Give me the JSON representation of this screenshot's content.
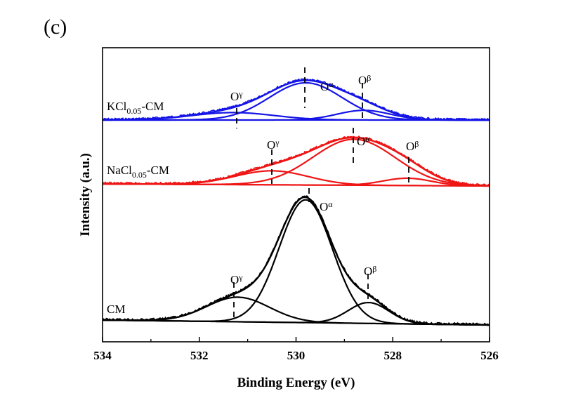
{
  "panel_label": "(c)",
  "chart_data": {
    "type": "line",
    "xlabel": "Binding Energy (eV)",
    "ylabel": "Intensity (a.u.)",
    "xlim": [
      534,
      526
    ],
    "x_reversed": true,
    "xticks": [
      "534",
      "532",
      "530",
      "528",
      "526"
    ],
    "grid": false,
    "legend": "none",
    "samples": [
      {
        "name": "KCl0.05-CM",
        "label_main": "KCl",
        "label_sub": "0.05",
        "label_tail": "-CM",
        "color": "#1414e6",
        "peaks": [
          {
            "name": "Oγ",
            "label_base": "O",
            "label_sub": "γ",
            "center": 531.3,
            "height": 0.1,
            "sigma": 0.85
          },
          {
            "name": "Oα",
            "label_base": "O",
            "label_sub": "α",
            "center": 529.8,
            "height": 0.5,
            "sigma": 0.75
          },
          {
            "name": "Oβ",
            "label_base": "O",
            "label_sub": "β",
            "center": 528.6,
            "height": 0.13,
            "sigma": 0.55
          }
        ]
      },
      {
        "name": "NaCl0.05-CM",
        "label_main": "NaCl",
        "label_sub": "0.05",
        "label_tail": "-CM",
        "color": "#ee1515",
        "peaks": [
          {
            "name": "Oγ",
            "label_base": "O",
            "label_sub": "γ",
            "center": 530.5,
            "height": 0.21,
            "sigma": 0.75
          },
          {
            "name": "Oα",
            "label_base": "O",
            "label_sub": "α",
            "center": 528.8,
            "height": 0.69,
            "sigma": 0.85
          },
          {
            "name": "Oβ",
            "label_base": "O",
            "label_sub": "β",
            "center": 527.7,
            "height": 0.11,
            "sigma": 0.5
          }
        ]
      },
      {
        "name": "CM",
        "label_main": "CM",
        "label_sub": "",
        "label_tail": "",
        "color": "#000000",
        "peaks": [
          {
            "name": "Oγ",
            "label_base": "O",
            "label_sub": "γ",
            "center": 531.2,
            "height": 0.2,
            "sigma": 0.65
          },
          {
            "name": "Oα",
            "label_base": "O",
            "label_sub": "α",
            "center": 529.8,
            "height": 1.0,
            "sigma": 0.55
          },
          {
            "name": "Oβ",
            "label_base": "O",
            "label_sub": "β",
            "center": 528.5,
            "height": 0.17,
            "sigma": 0.42
          }
        ]
      }
    ]
  }
}
